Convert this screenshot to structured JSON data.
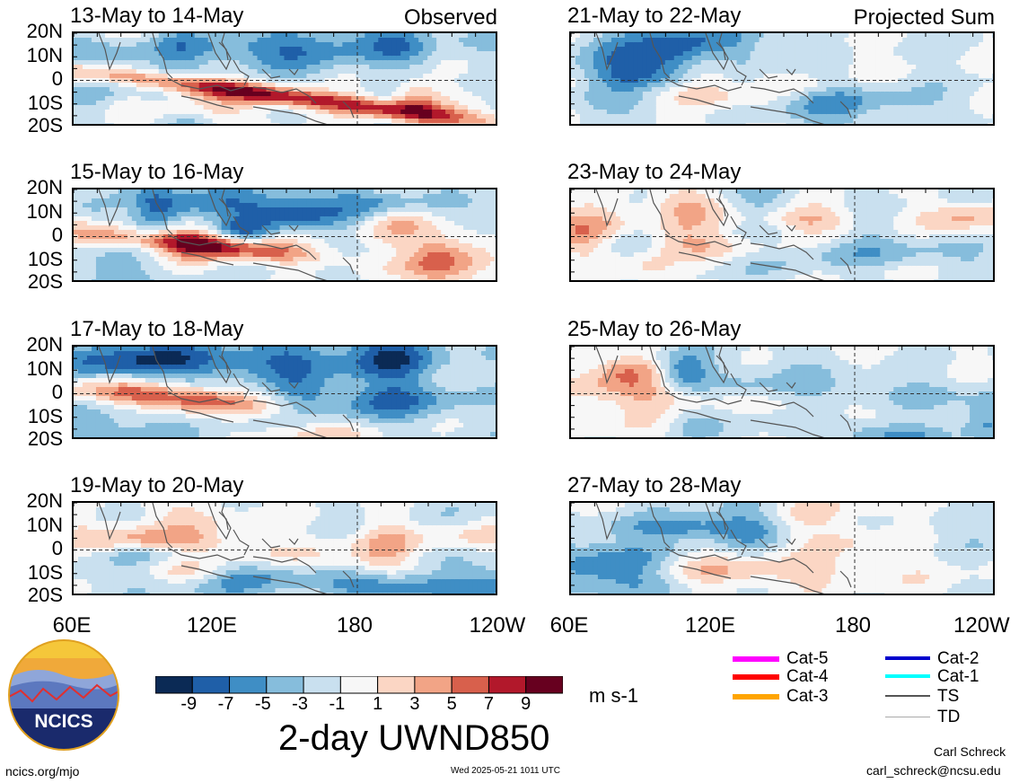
{
  "chart_data": {
    "type": "heatmap",
    "variable": "2-day UWND850",
    "units": "m s-1",
    "lat_ticks": [
      "20N",
      "10N",
      "0",
      "10S",
      "20S"
    ],
    "lon_ticks": [
      "60E",
      "120E",
      "180",
      "120W"
    ],
    "colorbar": {
      "ticks": [
        "-9",
        "-7",
        "-5",
        "-3",
        "-1",
        "1",
        "3",
        "5",
        "7",
        "9"
      ],
      "colors": [
        "#0b2a55",
        "#1f5fa8",
        "#3f8ec5",
        "#86bddc",
        "#c9e0ef",
        "#f7f7f7",
        "#fbd6c4",
        "#f2a486",
        "#d8604c",
        "#b2182b",
        "#67001f"
      ]
    },
    "panels": [
      {
        "title": "13-May to 14-May",
        "label": "Observed"
      },
      {
        "title": "21-May to 22-May",
        "label": "Projected Sum"
      },
      {
        "title": "15-May to 16-May",
        "label": ""
      },
      {
        "title": "23-May to 24-May",
        "label": ""
      },
      {
        "title": "17-May to 18-May",
        "label": ""
      },
      {
        "title": "25-May to 26-May",
        "label": ""
      },
      {
        "title": "19-May to 20-May",
        "label": ""
      },
      {
        "title": "27-May to 28-May",
        "label": ""
      }
    ]
  },
  "legend": {
    "items": [
      {
        "label": "Cat-5",
        "color": "#ff00ff"
      },
      {
        "label": "Cat-4",
        "color": "#ff0000"
      },
      {
        "label": "Cat-3",
        "color": "#ffa500"
      },
      {
        "label": "Cat-2",
        "color": "#0000cd"
      },
      {
        "label": "Cat-1",
        "color": "#00ffff"
      },
      {
        "label": "TS",
        "color": "#555555"
      },
      {
        "label": "TD",
        "color": "#aaaaaa"
      }
    ]
  },
  "logo": {
    "text": "NCICS"
  },
  "footer": {
    "left": "ncics.org/mjo",
    "center": "Wed 2025-05-21 1011 UTC",
    "author": "Carl Schreck",
    "email": "carl_schreck@ncsu.edu"
  }
}
